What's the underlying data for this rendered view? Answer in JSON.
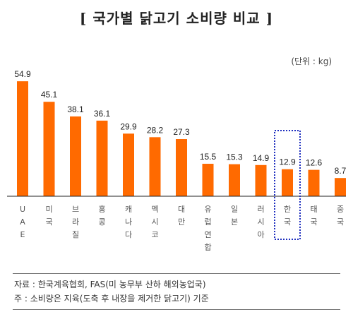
{
  "title": "[ 국가별 닭고기 소비량 비교 ]",
  "unit_label": "(단위 : kg)",
  "chart_data": {
    "type": "bar",
    "categories": [
      "UAE",
      "미국",
      "브라질",
      "홍콩",
      "캐나다",
      "멕시코",
      "대만",
      "유럽연합",
      "일본",
      "러시아",
      "한국",
      "태국",
      "중국"
    ],
    "values": [
      54.9,
      45.1,
      38.1,
      36.1,
      29.9,
      28.2,
      27.3,
      15.5,
      15.3,
      14.9,
      12.9,
      12.6,
      8.7
    ],
    "value_labels": [
      "54.9",
      "45.1",
      "38.1",
      "36.1",
      "29.9",
      "28.2",
      "27.3",
      "15.5",
      "15.3",
      "14.9",
      "12.9",
      "12.6",
      "8.7"
    ],
    "highlight_category": "한국",
    "ylim": [
      0,
      60
    ],
    "grid": false,
    "bar_color": "#ff6a00",
    "highlight_color": "#1f2fbf"
  },
  "notes": {
    "source": "자료 : 한국계육협회, FAS(미 농무부 산하 해외농업국)",
    "note": "주 : 소비량은 지육(도축 후 내장을 제거한 닭고기) 기준"
  }
}
